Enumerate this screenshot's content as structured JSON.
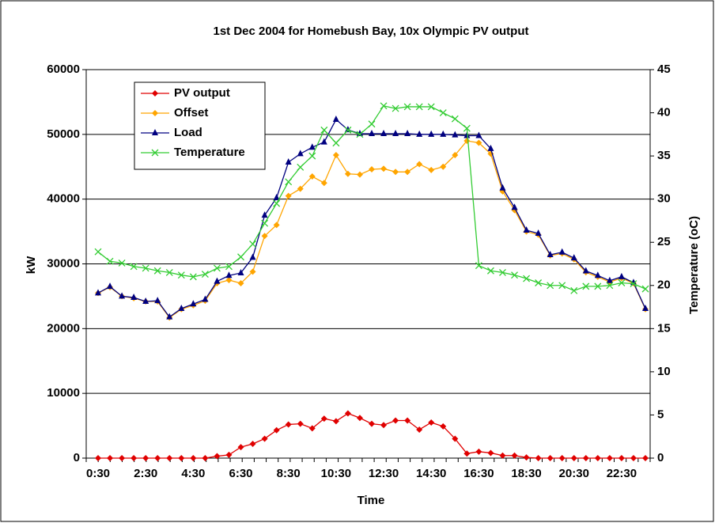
{
  "chart_data": {
    "type": "line",
    "title": "1st Dec 2004 for Homebush Bay, 10x Olympic PV output",
    "x_label": "Time",
    "y_label": "kW",
    "y2_label": "Temperature (oC)",
    "categories": [
      "0:30",
      null,
      null,
      null,
      "2:30",
      null,
      null,
      null,
      "4:30",
      null,
      null,
      null,
      "6:30",
      null,
      null,
      null,
      "8:30",
      null,
      null,
      null,
      "10:30",
      null,
      null,
      null,
      "12:30",
      null,
      null,
      null,
      "14:30",
      null,
      null,
      null,
      "16:30",
      null,
      null,
      null,
      "18:30",
      null,
      null,
      null,
      "20:30",
      null,
      null,
      null,
      "22:30",
      null,
      null
    ],
    "ylim": [
      0,
      60000
    ],
    "yticks": [
      0,
      10000,
      20000,
      30000,
      40000,
      50000,
      60000
    ],
    "y2lim": [
      0,
      45
    ],
    "y2ticks": [
      0,
      5,
      10,
      15,
      20,
      25,
      30,
      35,
      40,
      45
    ],
    "grid": true,
    "legend": "upper left",
    "series": [
      {
        "name": "PV output",
        "color": "#e00000",
        "marker": "diamond",
        "values": [
          0,
          0,
          0,
          0,
          0,
          0,
          0,
          0,
          0,
          0,
          300,
          500,
          1700,
          2200,
          3000,
          4300,
          5200,
          5300,
          4600,
          6100,
          5700,
          6900,
          6200,
          5300,
          5100,
          5800,
          5800,
          4400,
          5500,
          4900,
          3000,
          700,
          1000,
          800,
          400,
          400,
          100,
          0,
          0,
          0,
          0,
          0,
          0,
          0,
          0,
          0,
          0
        ]
      },
      {
        "name": "Offset",
        "color": "#ffa500",
        "marker": "diamond",
        "values": [
          25500,
          26400,
          25000,
          24700,
          24200,
          24200,
          21700,
          23000,
          23600,
          24300,
          27000,
          27500,
          27000,
          28800,
          34300,
          36000,
          40500,
          41600,
          43500,
          42500,
          46800,
          43900,
          43800,
          44600,
          44700,
          44200,
          44200,
          45400,
          44500,
          45000,
          46800,
          49000,
          48700,
          47000,
          41200,
          38300,
          35000,
          34500,
          31300,
          31600,
          30700,
          28700,
          28000,
          27200,
          27800,
          27000,
          23000
        ]
      },
      {
        "name": "Load",
        "color": "#000080",
        "marker": "triangle",
        "values": [
          25500,
          26500,
          25000,
          24800,
          24200,
          24300,
          21800,
          23100,
          23800,
          24500,
          27300,
          28200,
          28600,
          31000,
          37500,
          40200,
          45700,
          47000,
          48000,
          48800,
          52300,
          50700,
          50100,
          50100,
          50100,
          50100,
          50100,
          50000,
          50000,
          50000,
          49900,
          49800,
          49800,
          47800,
          41700,
          38700,
          35200,
          34700,
          31400,
          31800,
          30900,
          28900,
          28200,
          27400,
          28000,
          27100,
          23100
        ]
      },
      {
        "name": "Temperature",
        "color": "#33cc33",
        "marker": "x",
        "axis": "y2",
        "values": [
          23.9,
          22.8,
          22.6,
          22.2,
          22.0,
          21.7,
          21.5,
          21.2,
          21.0,
          21.3,
          22.0,
          22.2,
          23.3,
          24.8,
          27.2,
          29.5,
          32.0,
          33.7,
          35.0,
          38.0,
          36.5,
          38.0,
          37.5,
          38.7,
          40.8,
          40.5,
          40.7,
          40.7,
          40.7,
          40.0,
          39.3,
          38.2,
          22.3,
          21.7,
          21.5,
          21.2,
          20.8,
          20.3,
          20.0,
          20.0,
          19.4,
          19.9,
          19.9,
          20.0,
          20.3,
          20.2,
          19.6
        ]
      }
    ]
  }
}
